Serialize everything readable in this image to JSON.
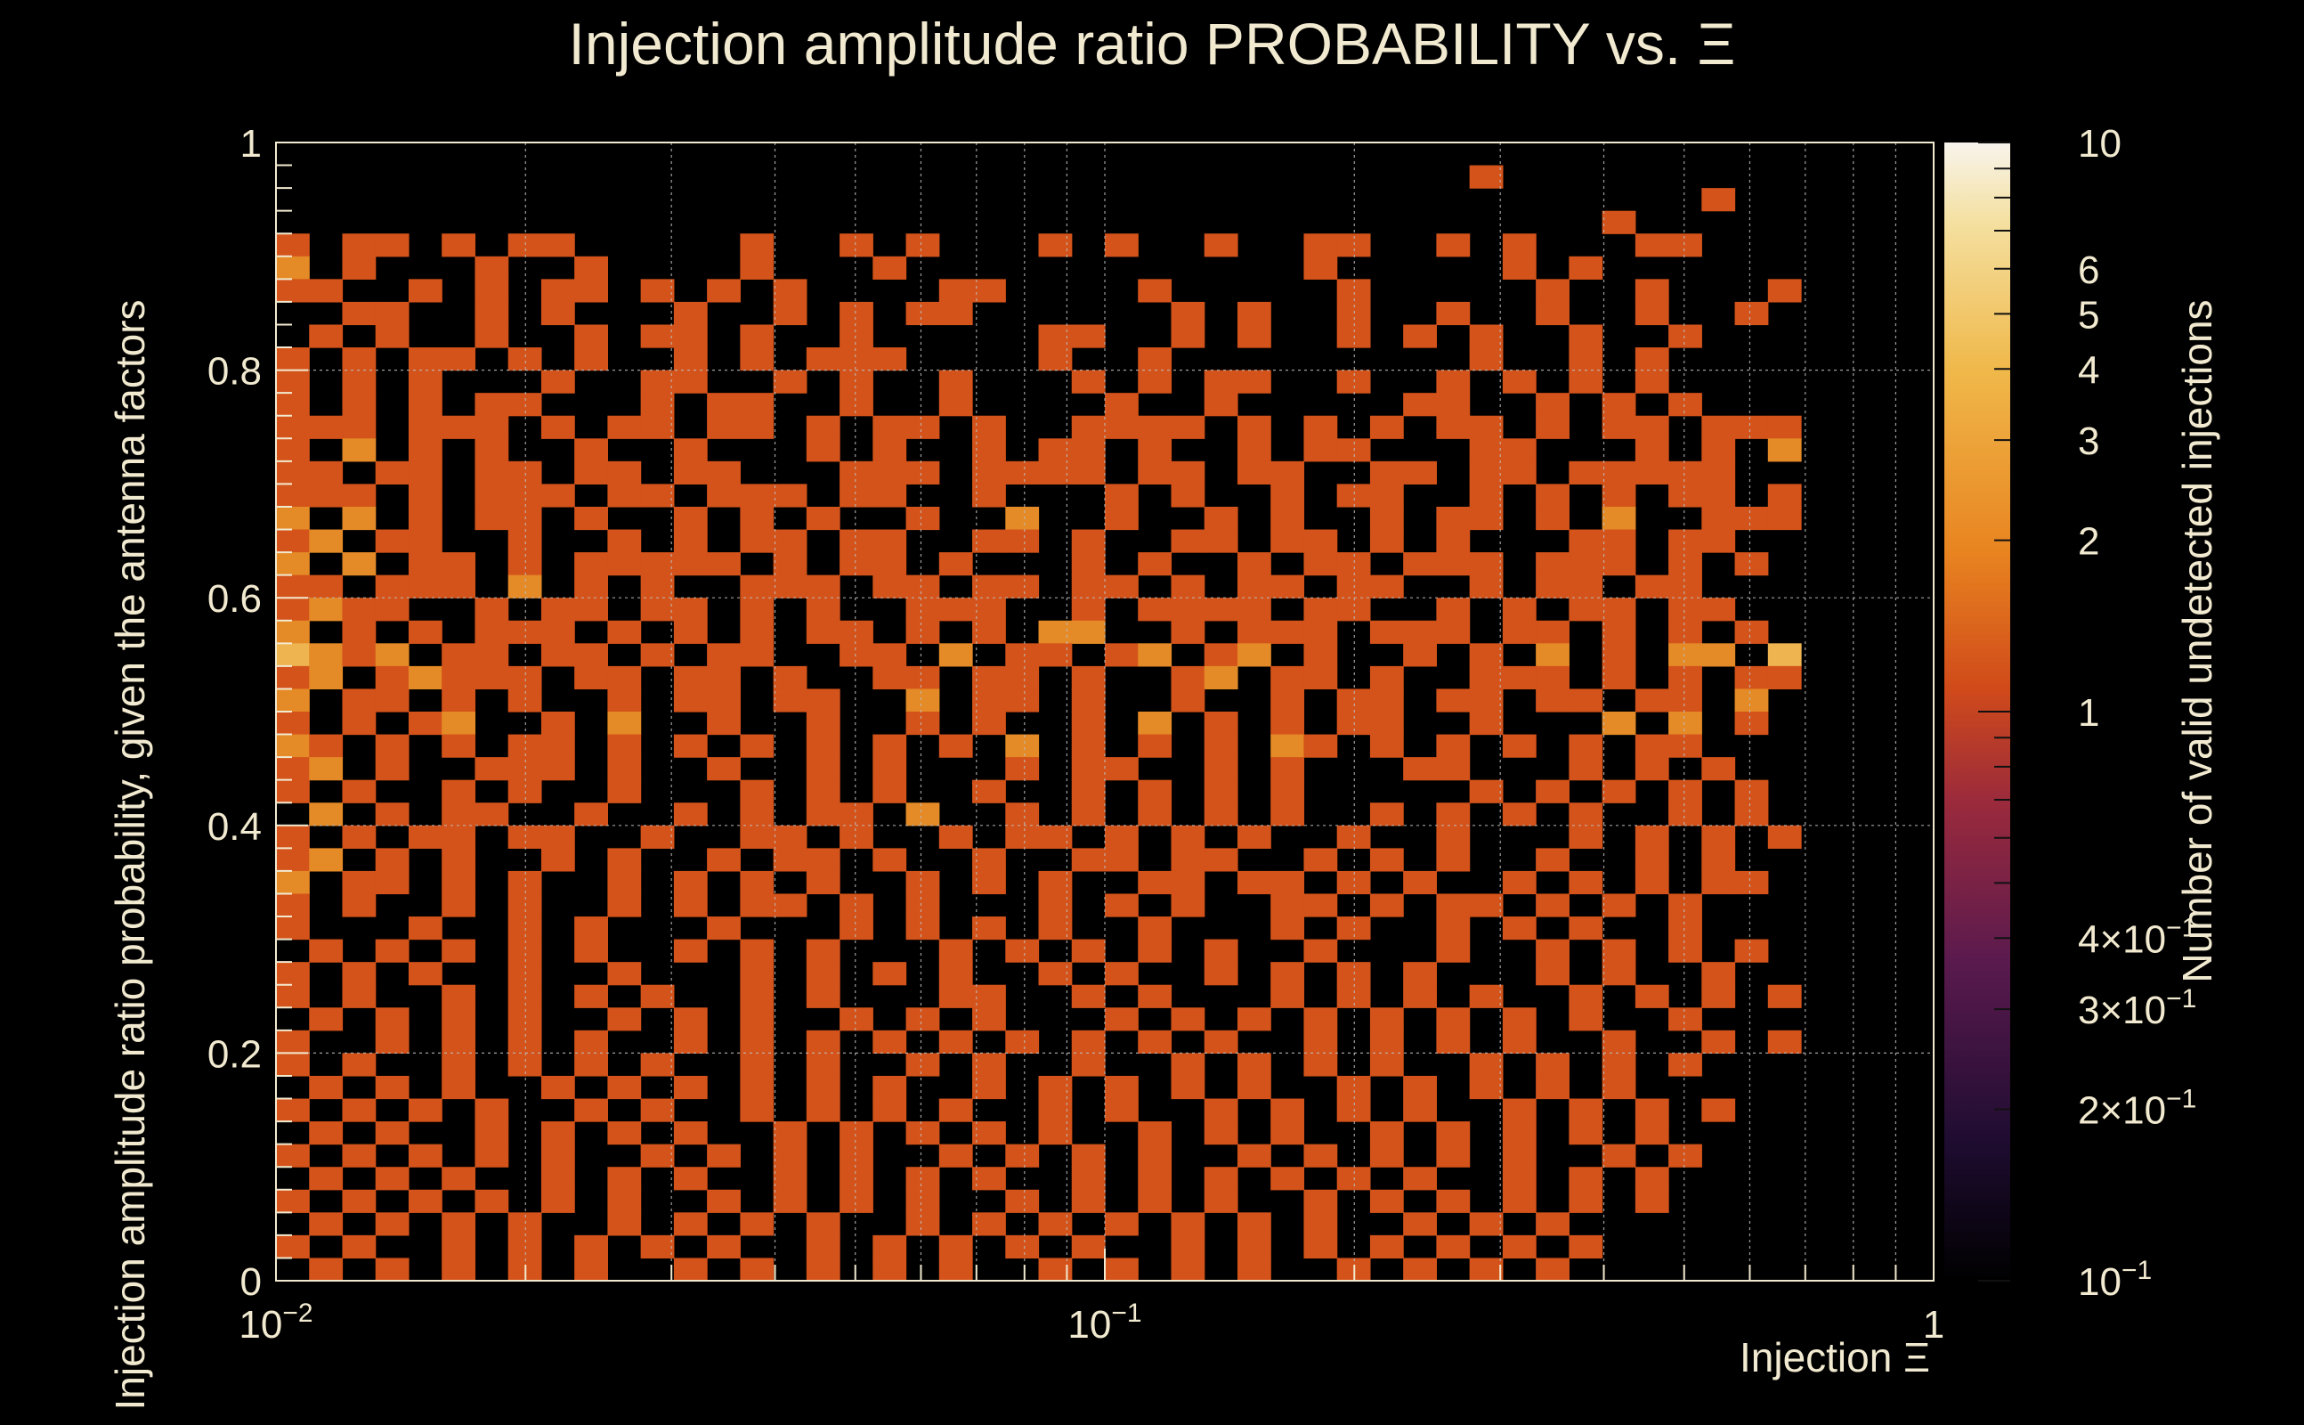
{
  "chart_data": {
    "type": "heatmap",
    "title": "Injection amplitude ratio PROBABILITY vs.  Ξ",
    "xlabel": "Injection Ξ",
    "ylabel": "Injection amplitude ratio probability, given the antenna factors",
    "colorbar_label": "Number of valid undetected injections",
    "x_scale": "log",
    "xlim": [
      0.01,
      1
    ],
    "ylim": [
      0,
      1
    ],
    "z_scale": "log",
    "zlim": [
      0.1,
      10
    ],
    "grid": true,
    "x_ticks": [
      {
        "value": 0.01,
        "label": "10",
        "exp": "−2"
      },
      {
        "value": 0.1,
        "label": "10",
        "exp": "−1"
      },
      {
        "value": 1,
        "label": "1",
        "exp": ""
      }
    ],
    "y_ticks": [
      {
        "value": 0,
        "label": "0"
      },
      {
        "value": 0.2,
        "label": "0.2"
      },
      {
        "value": 0.4,
        "label": "0.4"
      },
      {
        "value": 0.6,
        "label": "0.6"
      },
      {
        "value": 0.8,
        "label": "0.8"
      },
      {
        "value": 1,
        "label": "1"
      }
    ],
    "colorbar_ticks": [
      {
        "value": 10,
        "label": "10",
        "exp": ""
      },
      {
        "value": 6,
        "label": "6",
        "exp": ""
      },
      {
        "value": 5,
        "label": "5",
        "exp": ""
      },
      {
        "value": 4,
        "label": "4",
        "exp": ""
      },
      {
        "value": 3,
        "label": "3",
        "exp": ""
      },
      {
        "value": 2,
        "label": "2",
        "exp": ""
      },
      {
        "value": 1,
        "label": "1",
        "exp": ""
      },
      {
        "value": 0.4,
        "label": "4×10",
        "exp": "−1"
      },
      {
        "value": 0.3,
        "label": "3×10",
        "exp": "−1"
      },
      {
        "value": 0.2,
        "label": "2×10",
        "exp": "−1"
      },
      {
        "value": 0.1,
        "label": "10",
        "exp": "−1"
      }
    ],
    "colormap": [
      "#000000",
      "#1e0c30",
      "#5a1a4e",
      "#9a2a3c",
      "#d04a1a",
      "#e88420",
      "#f0b84a",
      "#f4e0a0",
      "#f8f4ec"
    ],
    "bins": {
      "x_bins": 50,
      "y_bins": 50,
      "x_min": 0.01,
      "x_max": 1,
      "y_min": 0,
      "y_max": 1
    },
    "rows": [
      "..................................................",
      "....................................1.............",
      "...........................................1......",
      "........................................1.........",
      "1.11.1.11.....1..1.1...1.1..1..11..1.1...11.......",
      "2.1...1..1....1...1............1.....1.1..........",
      "11..1.1.11.1.1.1....11....1.....1.....1..1...1....",
      "..11..1.1...1..1.1.11......1.1..1..1..1..1..1.....",
      ".1.1..1..1.11.1..1.....11..1.1..1.1.1..1..1.......",
      "1.1.11.1.1..1.1.111....1..1.........1..1.1........",
      "1.1.1...1..11..1.1..1...1.1.11..1..1.1.1.1........",
      "1.1.1.11...1.11..1..1....1..1.....11..1.1.1.......",
      "111.111.1.11.11.1.11.1..1111.1.1.1.11.1.11.111....",
      "1.2.1.1..1..1...1.1..1.11.1..1.11...11...1.1.2....",
      "11.11.11.11.11...111.1111.11.11..11.11.11111......",
      "111.1.111.11.111.11..1...1.1..1.11..1.1.1.11.1....",
      "2.2.1.11.1..1.1.1..1..2..1..1.1..1.11.1.2..111....",
      "12.11..1..1.1.11.11..11.1..11.11.1.1...11.11......",
      "2.2.11.1.11111.1.11.1...1.1..1.11.111.111.1.1.....",
      "11.111.2.1.1..111.11.11.11.1.11.11..1.11.11.......",
      "1211..1.11.11.1.1..111..1.1111.11..1.1.11.11......",
      "2.1.1.111.1.1.1.11.1.1.22..1.111.111.11.1.1.1.....",
      "3212.11.11.1.11..11.2.11.12.12.1..1.1.2.1.22.3....",
      "12.12111.11.11.1..11.11.1..12.11.1..111.1.1.11....",
      "2.11.1.1..1.11.11..2.11.1..1..1.11.11.11.11.2.....",
      "1.1.12..1.2..1..1..1.1..1.2.1.1.11..1...2.2.1.....",
      "21.1.1.11.1.1.1.1.1.1.2.1.1.1.21.1.1.1.1.11.......",
      "12.1..111.1..1..1.1...1.11..1.1...11...1.1.1......",
      "1.1..1.1..1...1.1.1..1..1.1.1.1.....1.1.1.1.1.....",
      ".2.1.11..1..1.1.11.2..1.1.1.1.1..1.1.1.1..1.1.....",
      "1.1.11.11..1..11.1..1.11.1.1.1..1..1...1.1.1.1....",
      "12.1.1..1.1..1.11.1..1..11.11..1.1.1..1..1.1......",
      "2.11.1.1..1.1.1.1..1.1.1..11.11.1.1..1.1.1.11.....",
      "1.1..1.1..1.1.11.1.1...1.1.1..11.1.11.1.1.1.......",
      "1...1..1.1...1...1.1.1.1..1...1.1..1.1.1..1.......",
      ".1.1.1.1.1..1.1.1...1.1.1.1.1..1...1..1.1.1.1.....",
      "1.1.1..1..1...1.1.1.1..1.1..1.1.1.1...1.1..1......",
      "1.1..1.1.1.1..1.1...11..1.1...1.1.1.1..1.1.1.1....",
      ".1.1.1.1..1.1.1..1.1.1...1.1.1.1.1.1.1.1..1.......",
      "1..1.1.1.1..1.1.1.1.1.1.1.1.1..1.1.1.1..1..1.1....",
      "1.1..1.1.1.1..1.1..1.1..1..1.1.1.1..1.1.1.1.......",
      ".1.1.1..1.1.1.1.1.1..1.1.1.1.1..1.1.1.1.1.........",
      "1.1.1.1..1.1..1.1.1.1..1.1..1.1.1.1..1.1.1.1......",
      ".1.1..1.1.1.1..1.1.1.1.1..1.1.1..1.1.1.1.1........",
      "1.1.1.1.1..1.1.1.1..1.1.1.1..1.1.1.1.1..1.1.......",
      ".1.1.1..1.1.1..1.1.1.1..1.1.1.1.1.1..1.1.1........",
      "1.1.1.1.1.1..1.1.1.1..1.1.1.1..1.1.1.1.1.1........",
      ".1.1.1.1..1.1.1.1..1.1.1.1.1.1.1..1.1.1...........",
      "1.1..1.1.1.1.1..1.1.1.1.1..1.1.1.1.1.1.1..........",
      ".1.1.1.1.1..1.1.1.1.1..1.1.1.1..1.1.1.1..........."
    ]
  }
}
